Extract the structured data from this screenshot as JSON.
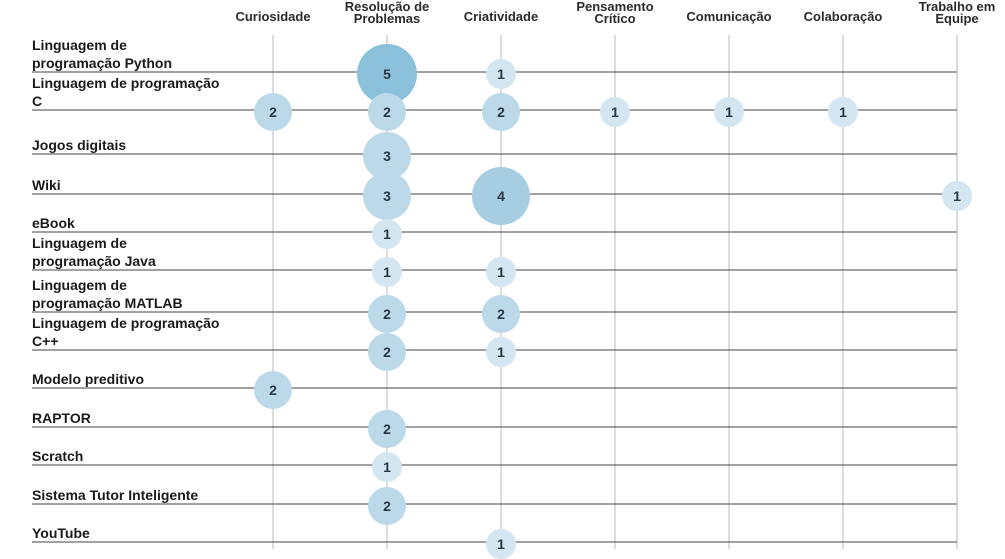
{
  "chart_data": {
    "type": "bubble-matrix",
    "columns": [
      "Curiosidade",
      "Resolução de Problemas",
      "Criatividade",
      "Pensamento Crítico",
      "Comunicação",
      "Colaboração",
      "Trabalho em Equipe"
    ],
    "rows": [
      "Linguagem de programação Python",
      "Linguagem de programação C",
      "Jogos digitais",
      "Wiki",
      "eBook",
      "Linguagem de programação Java",
      "Linguagem de programação MATLAB",
      "Linguagem de programação C++",
      "Modelo preditivo",
      "RAPTOR",
      "Scratch",
      "Sistema Tutor Inteligente",
      "YouTube"
    ],
    "values": [
      [
        null,
        5,
        1,
        null,
        null,
        null,
        null
      ],
      [
        2,
        2,
        2,
        1,
        1,
        1,
        null
      ],
      [
        null,
        3,
        null,
        null,
        null,
        null,
        null
      ],
      [
        null,
        3,
        4,
        null,
        null,
        null,
        1
      ],
      [
        null,
        1,
        null,
        null,
        null,
        null,
        null
      ],
      [
        null,
        1,
        1,
        null,
        null,
        null,
        null
      ],
      [
        null,
        2,
        2,
        null,
        null,
        null,
        null
      ],
      [
        null,
        2,
        1,
        null,
        null,
        null,
        null
      ],
      [
        2,
        null,
        null,
        null,
        null,
        null,
        null
      ],
      [
        null,
        2,
        null,
        null,
        null,
        null,
        null
      ],
      [
        null,
        1,
        null,
        null,
        null,
        null,
        null
      ],
      [
        null,
        2,
        null,
        null,
        null,
        null,
        null
      ],
      [
        null,
        null,
        1,
        null,
        null,
        null,
        null
      ]
    ],
    "colors": {
      "bubble_small": "#d3e6f1",
      "bubble_medium": "#bcd9e9",
      "bubble_large": "#a7cde3",
      "bubble_xlarge": "#8cc1dc",
      "row_line": "#444444",
      "column_line": "#b8b8b8"
    }
  }
}
